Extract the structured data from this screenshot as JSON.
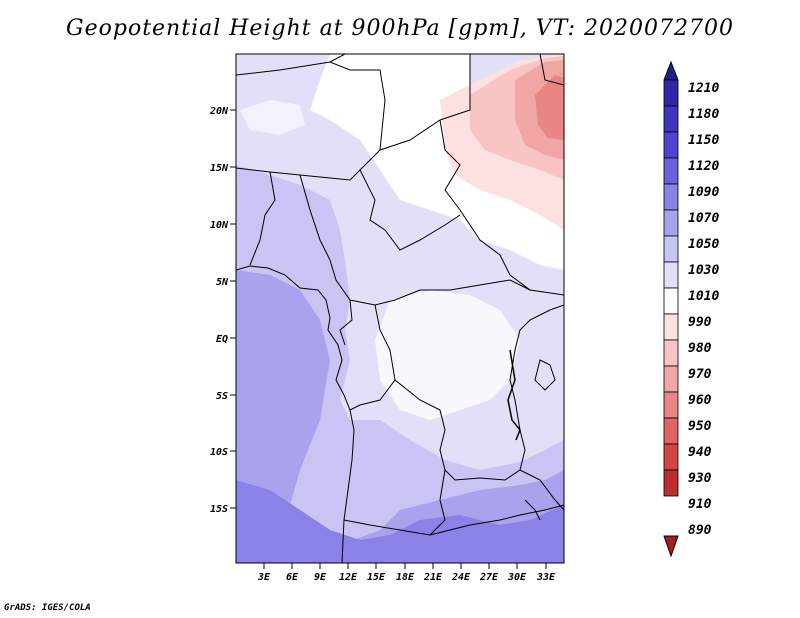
{
  "title": "Geopotential Height at 900hPa [gpm], VT: 2020072700",
  "credit": "GrADS: IGES/COLA",
  "map": {
    "lon_labels": [
      "3E",
      "6E",
      "9E",
      "12E",
      "15E",
      "18E",
      "21E",
      "24E",
      "27E",
      "30E",
      "33E"
    ],
    "lat_labels": [
      "20N",
      "15N",
      "10N",
      "5N",
      "EQ",
      "5S",
      "10S",
      "15S"
    ]
  },
  "colorbar": {
    "levels": [
      "1210",
      "1180",
      "1150",
      "1120",
      "1090",
      "1070",
      "1050",
      "1030",
      "1010",
      "990",
      "980",
      "970",
      "960",
      "950",
      "940",
      "930",
      "910",
      "890"
    ],
    "colors": [
      "#1f1c8c",
      "#2e28a8",
      "#3b35bf",
      "#4c45cf",
      "#6a62dc",
      "#8a82e6",
      "#a9a3ee",
      "#c8c4f4",
      "#e2e0f9",
      "#ffffff",
      "#fde0e0",
      "#f9c4c4",
      "#f2a5a5",
      "#e98585",
      "#df6464",
      "#d14545",
      "#bd2d2d",
      "#a51d1d"
    ]
  }
}
